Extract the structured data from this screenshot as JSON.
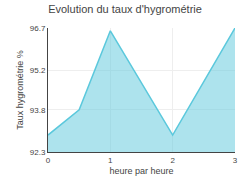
{
  "chart_data": {
    "type": "area",
    "title": "Evolution du taux d'hygrométrie",
    "xlabel": "heure par heure",
    "ylabel": "Taux hygrométrie %",
    "x": [
      0,
      0.5,
      1,
      2,
      3
    ],
    "values": [
      92.9,
      93.8,
      96.6,
      92.9,
      96.7
    ],
    "color": "#5bc8dc",
    "xlim": [
      0,
      3
    ],
    "ylim": [
      92.3,
      96.7
    ],
    "xticks": [
      0,
      1,
      2,
      3
    ],
    "yticks": [
      92.3,
      93.8,
      95.2,
      96.7
    ],
    "grid": true
  }
}
